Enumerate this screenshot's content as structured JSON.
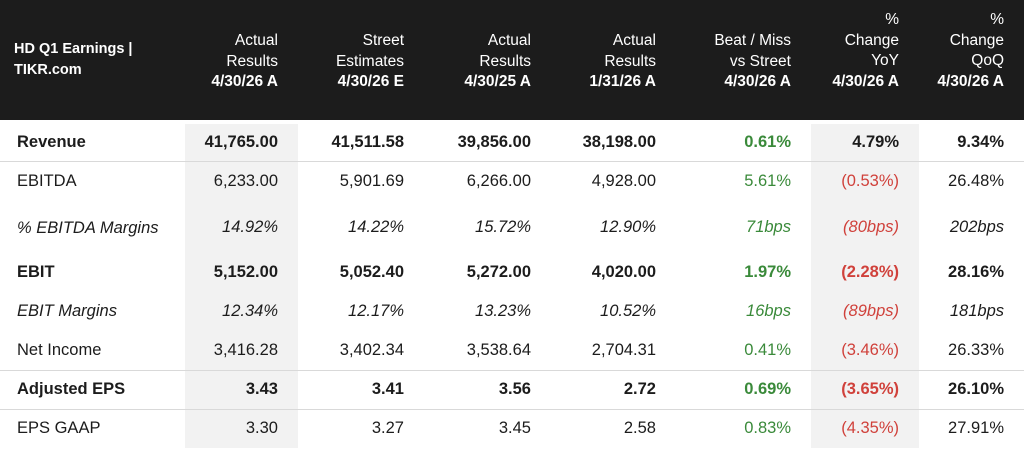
{
  "header": {
    "title": "HD Q1 Earnings | TIKR.com",
    "columns": [
      {
        "lines": [
          "Actual",
          "Results"
        ],
        "date": "4/30/26 A"
      },
      {
        "lines": [
          "Street",
          "Estimates"
        ],
        "date": "4/30/26 E"
      },
      {
        "lines": [
          "Actual",
          "Results"
        ],
        "date": "4/30/25 A"
      },
      {
        "lines": [
          "Actual",
          "Results"
        ],
        "date": "1/31/26 A"
      },
      {
        "lines": [
          "Beat / Miss",
          "vs Street"
        ],
        "date": "4/30/26 A"
      },
      {
        "lines": [
          "%",
          "Change",
          "YoY"
        ],
        "date": "4/30/26 A"
      },
      {
        "lines": [
          "%",
          "Change",
          "QoQ"
        ],
        "date": "4/30/26 A"
      }
    ]
  },
  "rows": [
    {
      "label": "Revenue",
      "values": [
        "41,765.00",
        "41,511.58",
        "39,856.00",
        "38,198.00",
        "0.61%",
        "4.79%",
        "9.34%"
      ]
    },
    {
      "label": "EBITDA",
      "values": [
        "6,233.00",
        "5,901.69",
        "6,266.00",
        "4,928.00",
        "5.61%",
        "(0.53%)",
        "26.48%"
      ]
    },
    {
      "label": "% EBITDA Margins",
      "values": [
        "14.92%",
        "14.22%",
        "15.72%",
        "12.90%",
        "71bps",
        "(80bps)",
        "202bps"
      ]
    },
    {
      "label": "EBIT",
      "values": [
        "5,152.00",
        "5,052.40",
        "5,272.00",
        "4,020.00",
        "1.97%",
        "(2.28%)",
        "28.16%"
      ]
    },
    {
      "label": "EBIT Margins",
      "values": [
        "12.34%",
        "12.17%",
        "13.23%",
        "10.52%",
        "16bps",
        "(89bps)",
        "181bps"
      ]
    },
    {
      "label": "Net Income",
      "values": [
        "3,416.28",
        "3,402.34",
        "3,538.64",
        "2,704.31",
        "0.41%",
        "(3.46%)",
        "26.33%"
      ]
    },
    {
      "label": "Adjusted EPS",
      "values": [
        "3.43",
        "3.41",
        "3.56",
        "2.72",
        "0.69%",
        "(3.65%)",
        "26.10%"
      ]
    },
    {
      "label": "EPS GAAP",
      "values": [
        "3.30",
        "3.27",
        "3.45",
        "2.58",
        "0.83%",
        "(4.35%)",
        "27.91%"
      ]
    }
  ],
  "colors": {
    "header_bg": "#1c1c1c",
    "positive": "#3a8a3a",
    "negative": "#d0413b",
    "shade": "#f2f2f2"
  }
}
